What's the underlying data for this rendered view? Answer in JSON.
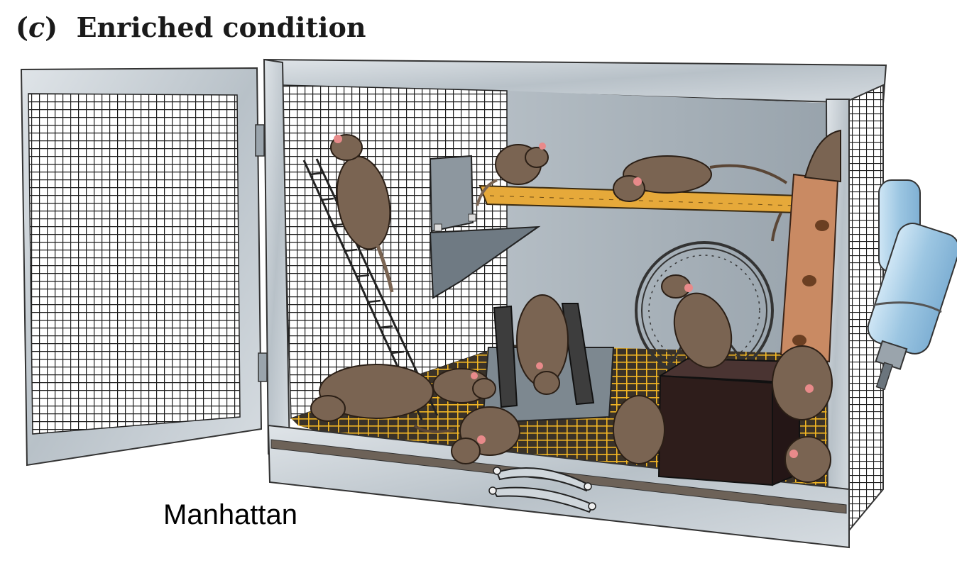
{
  "figure": {
    "label_open": "(",
    "label_letter": "c",
    "label_close": ")",
    "title": "Enriched condition"
  },
  "caption": "Manhattan",
  "colors": {
    "frame": "#c9d0d6",
    "frame_dark": "#8f9aa3",
    "back_wall": "#a9b3bb",
    "mesh": "#1b1b1b",
    "floor_grid": "#f2b624",
    "shelf": "#e6a93a",
    "rat": "#7a6452",
    "rat_dark": "#5a4636",
    "rat_ear": "#e88a8a",
    "wood_post": "#c98a63",
    "box": "#2e1d1b",
    "bottle": "#a9cde6"
  },
  "icons": [
    "cage-door",
    "ladder",
    "feeder",
    "shelf",
    "running-wheel",
    "tunnel",
    "wooden-post",
    "hide-box",
    "water-bottle",
    "drawer-handle",
    "rat"
  ]
}
